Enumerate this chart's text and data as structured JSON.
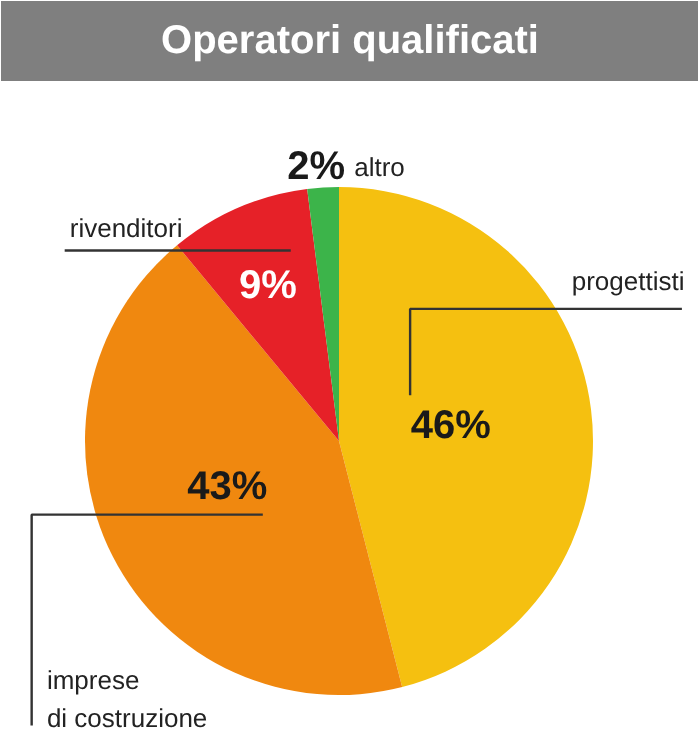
{
  "chart_data": {
    "type": "pie",
    "title": "Operatori qualificati",
    "categories": [
      "progettisti",
      "imprese di costruzione",
      "rivenditori",
      "altro"
    ],
    "values": [
      46,
      43,
      9,
      2
    ],
    "colors": [
      "#f5c010",
      "#f0880f",
      "#e62128",
      "#3cb44a"
    ],
    "value_labels": [
      "46%",
      "43%",
      "9%",
      "2%"
    ]
  }
}
